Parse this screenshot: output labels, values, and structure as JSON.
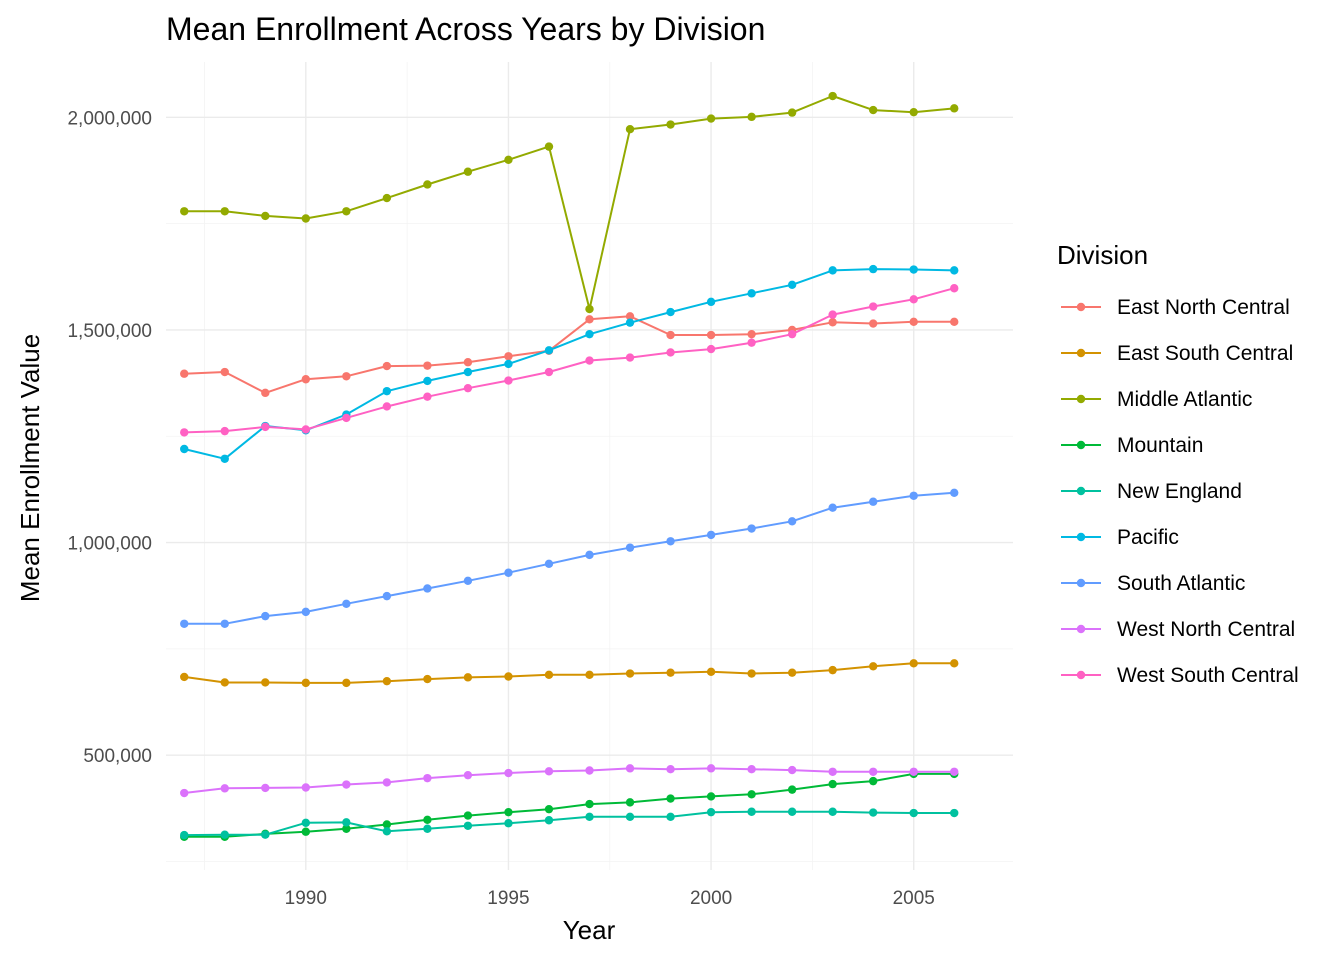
{
  "chart_data": {
    "type": "line",
    "title": "Mean Enrollment Across Years by Division",
    "xlabel": "Year",
    "ylabel": "Mean Enrollment Value",
    "xlim": [
      1986.55,
      2007.45
    ],
    "ylim": [
      230000,
      2130000
    ],
    "x_ticks": [
      1990,
      1995,
      2000,
      2005
    ],
    "y_ticks": [
      500000,
      1000000,
      1500000,
      2000000
    ],
    "y_tick_labels": [
      "500,000",
      "1,000,000",
      "1,500,000",
      "2,000,000"
    ],
    "grid": true,
    "legend_title": "Division",
    "legend_position": "right",
    "x": [
      1987,
      1988,
      1989,
      1990,
      1991,
      1992,
      1993,
      1994,
      1995,
      1996,
      1997,
      1998,
      1999,
      2000,
      2001,
      2002,
      2003,
      2004,
      2005,
      2006
    ],
    "series": [
      {
        "name": "East North Central",
        "color": "#F8766D",
        "values": [
          1397000,
          1401000,
          1352000,
          1384000,
          1391000,
          1415000,
          1416000,
          1424000,
          1438000,
          1451000,
          1525000,
          1532000,
          1488000,
          1488000,
          1490000,
          1500000,
          1518000,
          1515000,
          1519000,
          1519000
        ]
      },
      {
        "name": "East South Central",
        "color": "#D39200",
        "values": [
          684000,
          671000,
          671000,
          670000,
          670000,
          674000,
          679000,
          683000,
          685000,
          689000,
          689000,
          692000,
          694000,
          696000,
          692000,
          694000,
          700000,
          709000,
          716000,
          716000
        ]
      },
      {
        "name": "Middle Atlantic",
        "color": "#93AA00",
        "values": [
          1779000,
          1779000,
          1768000,
          1762000,
          1779000,
          1810000,
          1842000,
          1872000,
          1900000,
          1931000,
          1549000,
          1972000,
          1983000,
          1997000,
          2001000,
          2011000,
          2050000,
          2017000,
          2012000,
          2021000
        ]
      },
      {
        "name": "Mountain",
        "color": "#00BA38",
        "values": [
          308000,
          308000,
          315000,
          320000,
          327000,
          337000,
          348000,
          358000,
          366000,
          373000,
          385000,
          389000,
          398000,
          403000,
          408000,
          419000,
          432000,
          439000,
          456000,
          456000
        ]
      },
      {
        "name": "New England",
        "color": "#00C19F",
        "values": [
          312000,
          313000,
          313000,
          341000,
          342000,
          321000,
          327000,
          334000,
          340000,
          347000,
          355000,
          355000,
          355000,
          366000,
          367000,
          367000,
          367000,
          365000,
          364000,
          364000
        ]
      },
      {
        "name": "Pacific",
        "color": "#00B9E3",
        "values": [
          1220000,
          1197000,
          1274000,
          1264000,
          1301000,
          1356000,
          1380000,
          1401000,
          1420000,
          1452000,
          1490000,
          1517000,
          1542000,
          1566000,
          1586000,
          1606000,
          1640000,
          1643000,
          1642000,
          1640000
        ]
      },
      {
        "name": "South Atlantic",
        "color": "#619CFF",
        "values": [
          809000,
          809000,
          827000,
          837000,
          856000,
          874000,
          892000,
          910000,
          929000,
          950000,
          971000,
          988000,
          1003000,
          1018000,
          1033000,
          1050000,
          1082000,
          1096000,
          1110000,
          1117000
        ]
      },
      {
        "name": "West North Central",
        "color": "#DB72FB",
        "values": [
          411000,
          422000,
          423000,
          424000,
          431000,
          436000,
          446000,
          453000,
          458000,
          462000,
          464000,
          469000,
          467000,
          469000,
          467000,
          465000,
          461000,
          461000,
          461000,
          461000
        ]
      },
      {
        "name": "West South Central",
        "color": "#FF61C3",
        "values": [
          1259000,
          1262000,
          1272000,
          1266000,
          1293000,
          1320000,
          1343000,
          1363000,
          1381000,
          1401000,
          1428000,
          1435000,
          1447000,
          1455000,
          1470000,
          1490000,
          1536000,
          1555000,
          1572000,
          1598000
        ]
      }
    ]
  }
}
